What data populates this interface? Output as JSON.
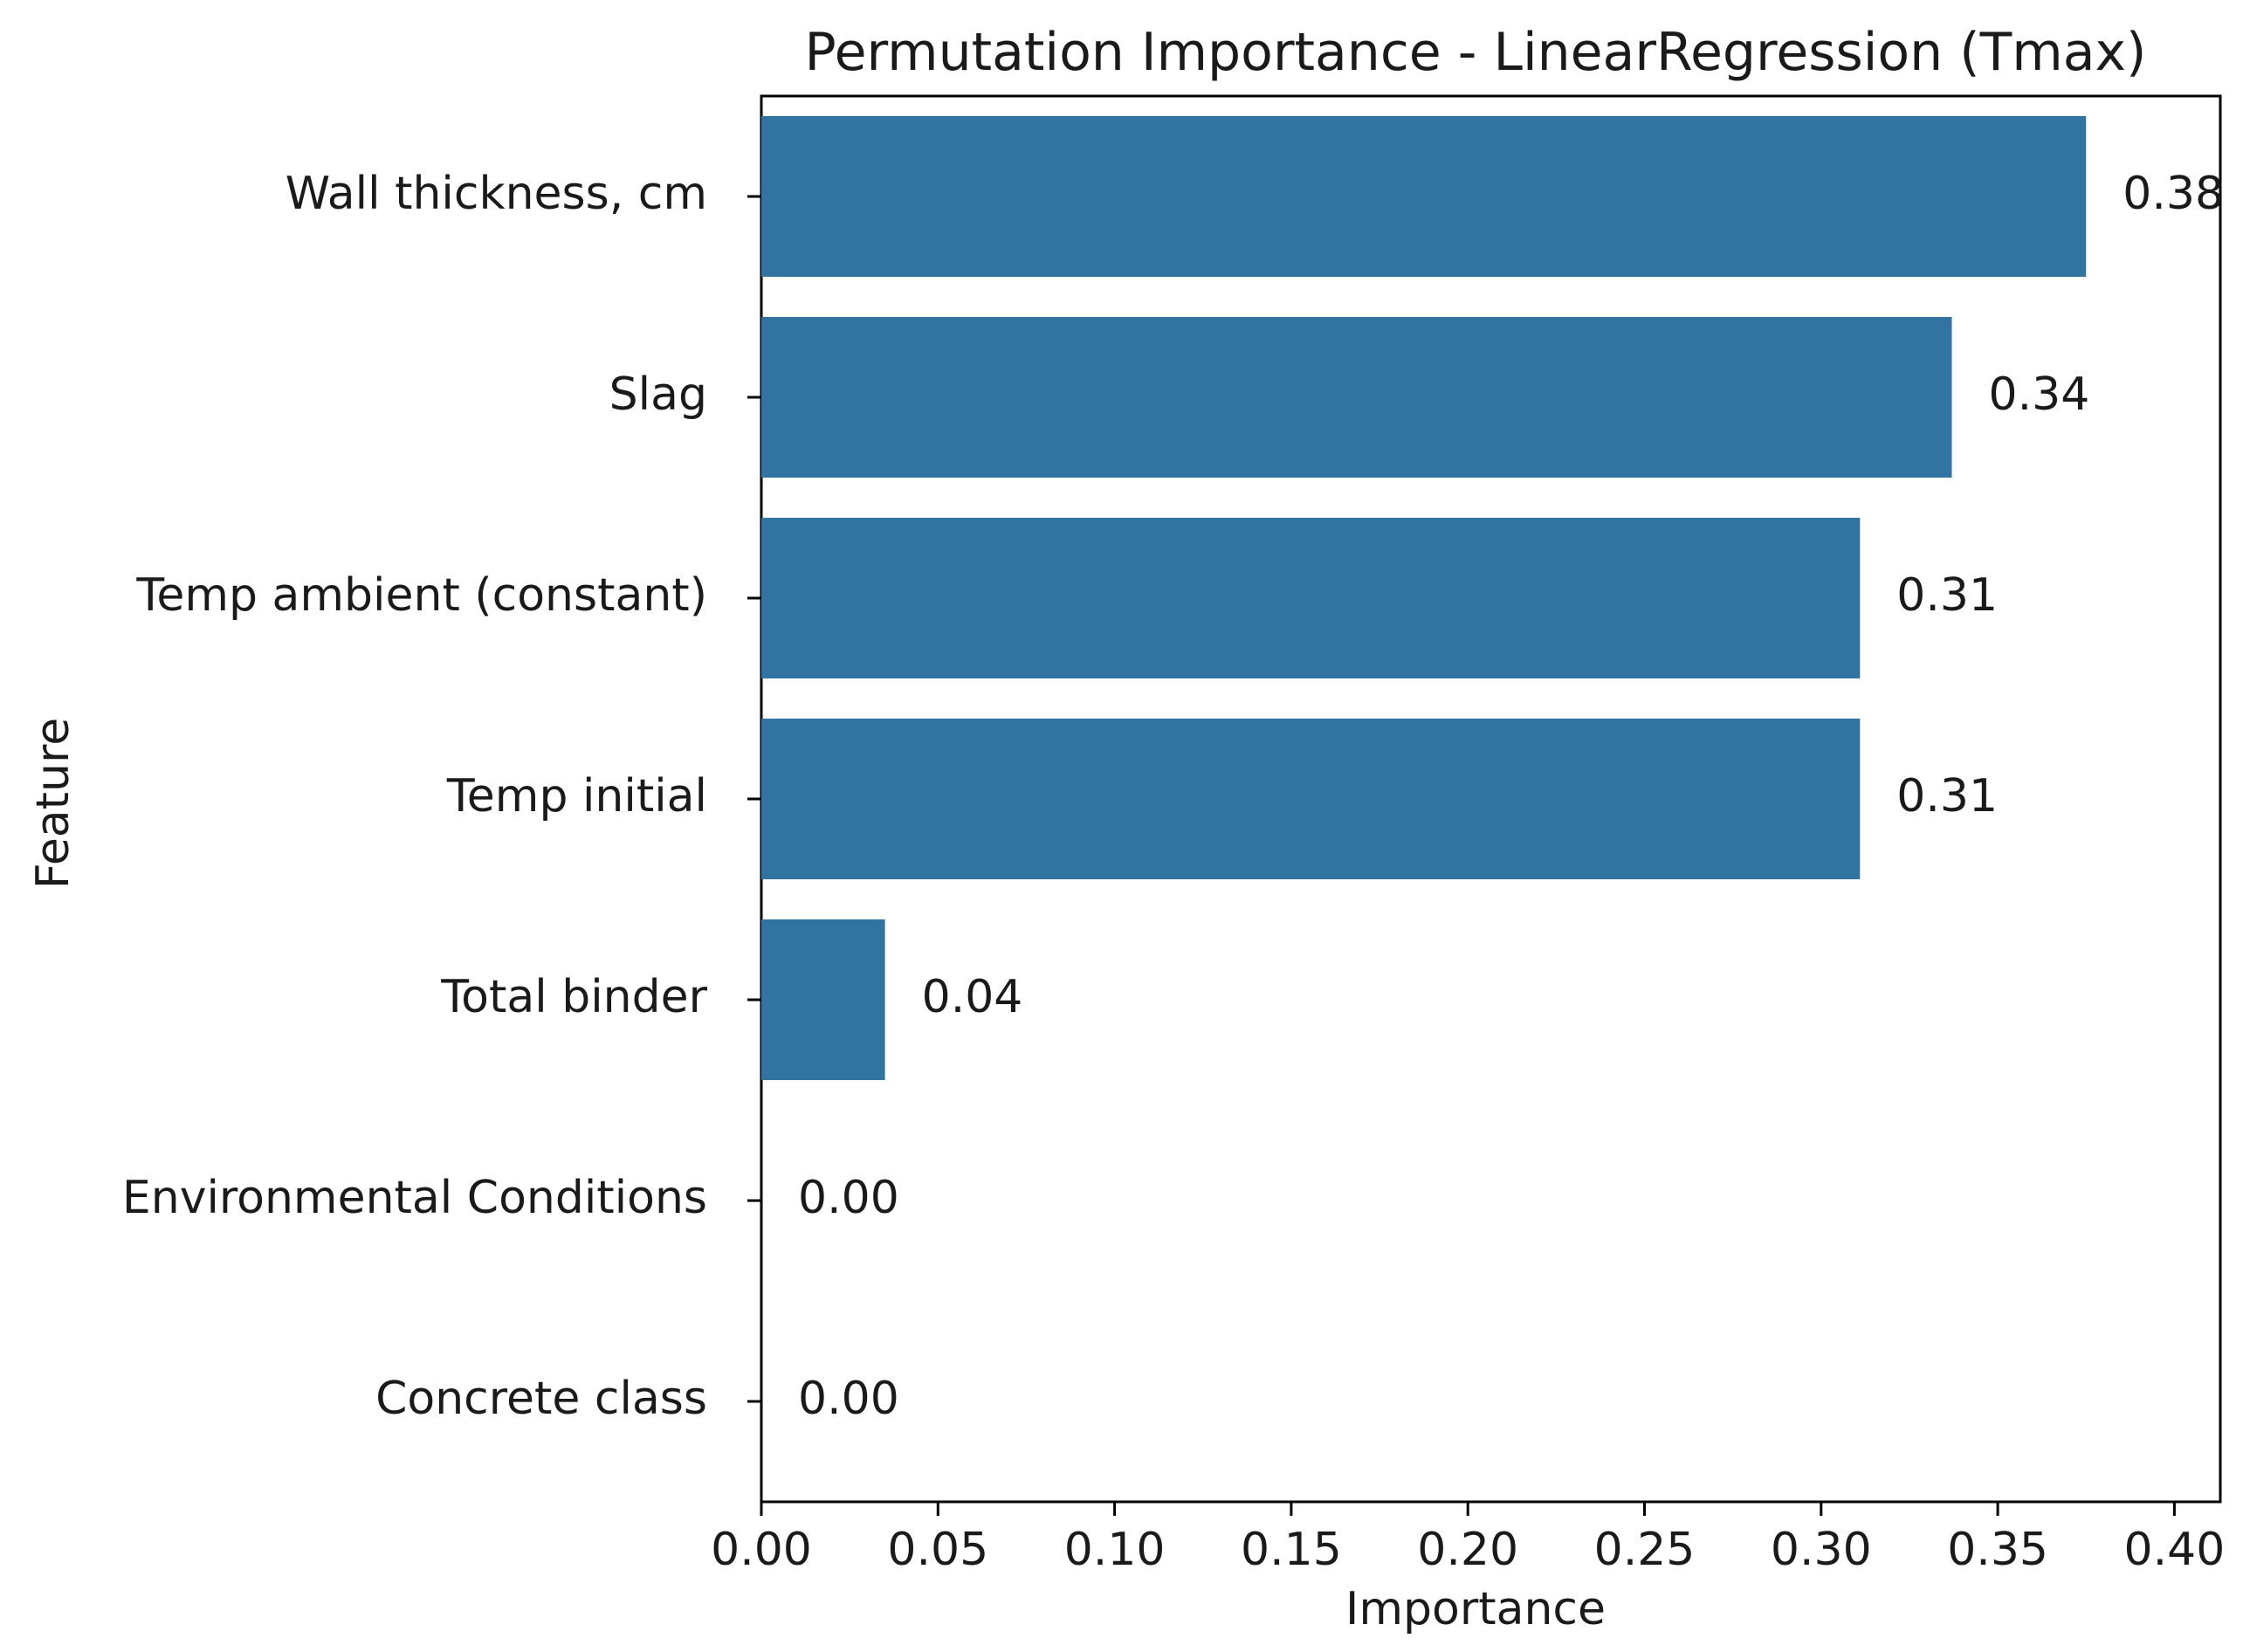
{
  "chart_data": {
    "type": "bar",
    "orientation": "horizontal",
    "title": "Permutation Importance - LinearRegression (Tmax)",
    "xlabel": "Importance",
    "ylabel": "Feature",
    "categories": [
      "Wall thickness, cm",
      "Slag",
      "Temp ambient (constant)",
      "Temp initial",
      "Total binder",
      "Environmental Conditions",
      "Concrete class"
    ],
    "values": [
      0.375,
      0.337,
      0.311,
      0.311,
      0.035,
      0.0,
      0.0
    ],
    "value_labels": [
      "0.38",
      "0.34",
      "0.31",
      "0.31",
      "0.04",
      "0.00",
      "0.00"
    ],
    "xlim": [
      0,
      0.413
    ],
    "xticks": [
      0.0,
      0.05,
      0.1,
      0.15,
      0.2,
      0.25,
      0.3,
      0.35,
      0.4
    ],
    "xtick_labels": [
      "0.00",
      "0.05",
      "0.10",
      "0.15",
      "0.20",
      "0.25",
      "0.30",
      "0.35",
      "0.40"
    ],
    "bar_color": "#3274a1",
    "grid": false,
    "legend": "none"
  }
}
